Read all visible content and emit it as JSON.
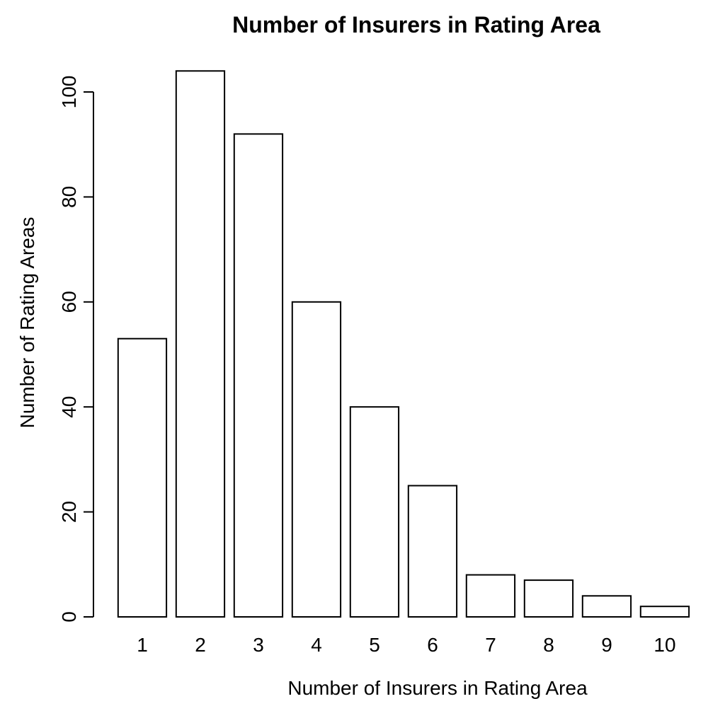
{
  "chart_data": {
    "type": "bar",
    "title": "Number of Insurers in Rating Area",
    "xlabel": "Number of Insurers in Rating Area",
    "ylabel": "Number of Rating Areas",
    "categories": [
      "1",
      "2",
      "3",
      "4",
      "5",
      "6",
      "7",
      "8",
      "9",
      "10"
    ],
    "values": [
      53,
      104,
      92,
      60,
      40,
      25,
      8,
      7,
      4,
      2
    ],
    "ylim": [
      0,
      104
    ],
    "yticks": [
      "0",
      "20",
      "40",
      "60",
      "80",
      "100"
    ],
    "grid": false,
    "bar_fill": "#ffffff",
    "bar_stroke": "#000000"
  }
}
